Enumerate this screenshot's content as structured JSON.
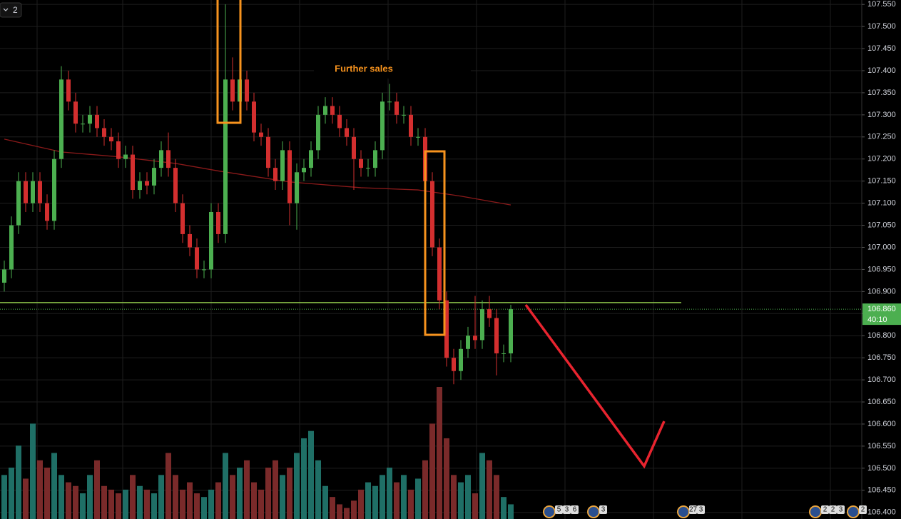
{
  "chart_data": {
    "type": "candlestick",
    "pane_label": "2",
    "annotation": "Further sales",
    "ylim": [
      106.385,
      107.56
    ],
    "yticks": [
      {
        "value": 107.55,
        "label": "107.550"
      },
      {
        "value": 107.5,
        "label": "107.500"
      },
      {
        "value": 107.45,
        "label": "107.450"
      },
      {
        "value": 107.4,
        "label": "107.400"
      },
      {
        "value": 107.35,
        "label": "107.350"
      },
      {
        "value": 107.3,
        "label": "107.300"
      },
      {
        "value": 107.25,
        "label": "107.250"
      },
      {
        "value": 107.2,
        "label": "107.200"
      },
      {
        "value": 107.15,
        "label": "107.150"
      },
      {
        "value": 107.1,
        "label": "107.100"
      },
      {
        "value": 107.05,
        "label": "107.050"
      },
      {
        "value": 107.0,
        "label": "107.000"
      },
      {
        "value": 106.95,
        "label": "106.950"
      },
      {
        "value": 106.9,
        "label": "106.900"
      },
      {
        "value": 106.85,
        "label": "106.850"
      },
      {
        "value": 106.8,
        "label": "106.800"
      },
      {
        "value": 106.75,
        "label": "106.750"
      },
      {
        "value": 106.7,
        "label": "106.700"
      },
      {
        "value": 106.65,
        "label": "106.650"
      },
      {
        "value": 106.6,
        "label": "106.600"
      },
      {
        "value": 106.55,
        "label": "106.550"
      },
      {
        "value": 106.5,
        "label": "106.500"
      },
      {
        "value": 106.45,
        "label": "106.450"
      },
      {
        "value": 106.4,
        "label": "106.400"
      }
    ],
    "grid": true,
    "up_color": "#4caf50",
    "down_color": "#d32f2f",
    "open": [
      106.92,
      106.95,
      107.05,
      107.15,
      107.1,
      107.15,
      107.1,
      107.06,
      107.2,
      107.38,
      107.33,
      107.28,
      107.28,
      107.3,
      107.27,
      107.25,
      107.24,
      107.2,
      107.21,
      107.13,
      107.15,
      107.14,
      107.18,
      107.22,
      107.18,
      107.1,
      107.03,
      107.0,
      106.95,
      106.95,
      107.08,
      107.03,
      107.38,
      107.33,
      107.38,
      107.33,
      107.26,
      107.25,
      107.18,
      107.15,
      107.22,
      107.1,
      107.17,
      107.18,
      107.22,
      107.3,
      107.32,
      107.3,
      107.27,
      107.25,
      107.2,
      107.18,
      107.18,
      107.22,
      107.33,
      107.33,
      107.3,
      107.3,
      107.25,
      107.25,
      107.15,
      107.0,
      106.88,
      106.75,
      106.72,
      106.77,
      106.8,
      106.79,
      106.86,
      106.84,
      106.76,
      106.76
    ],
    "high": [
      106.97,
      107.07,
      107.17,
      107.17,
      107.17,
      107.17,
      107.12,
      107.22,
      107.41,
      107.4,
      107.35,
      107.3,
      107.32,
      107.32,
      107.29,
      107.27,
      107.26,
      107.23,
      107.23,
      107.17,
      107.17,
      107.2,
      107.24,
      107.26,
      107.2,
      107.12,
      107.05,
      107.02,
      106.97,
      107.1,
      107.1,
      107.55,
      107.43,
      107.4,
      107.4,
      107.35,
      107.28,
      107.27,
      107.2,
      107.24,
      107.24,
      107.19,
      107.2,
      107.24,
      107.32,
      107.34,
      107.34,
      107.32,
      107.29,
      107.27,
      107.22,
      107.2,
      107.24,
      107.35,
      107.37,
      107.35,
      107.32,
      107.32,
      107.27,
      107.27,
      107.17,
      107.02,
      106.9,
      106.77,
      106.79,
      106.82,
      106.89,
      106.88,
      106.89,
      106.86,
      106.78,
      106.87
    ],
    "low": [
      106.9,
      106.93,
      107.03,
      107.08,
      107.08,
      107.08,
      107.04,
      107.04,
      107.18,
      107.31,
      107.26,
      107.26,
      107.26,
      107.25,
      107.23,
      107.22,
      107.18,
      107.18,
      107.11,
      107.11,
      107.12,
      107.12,
      107.16,
      107.16,
      107.08,
      107.01,
      106.98,
      106.93,
      106.93,
      106.93,
      107.01,
      107.01,
      107.31,
      107.31,
      107.31,
      107.24,
      107.23,
      107.16,
      107.13,
      107.13,
      107.05,
      107.04,
      107.15,
      107.16,
      107.2,
      107.28,
      107.28,
      107.25,
      107.23,
      107.13,
      107.16,
      107.16,
      107.16,
      107.2,
      107.31,
      107.28,
      107.28,
      107.23,
      107.23,
      107.13,
      106.98,
      106.86,
      106.73,
      106.69,
      106.7,
      106.75,
      106.77,
      106.77,
      106.82,
      106.71,
      106.74,
      106.74
    ],
    "close": [
      106.95,
      107.05,
      107.15,
      107.1,
      107.15,
      107.1,
      107.06,
      107.2,
      107.38,
      107.33,
      107.28,
      107.28,
      107.3,
      107.27,
      107.25,
      107.24,
      107.2,
      107.21,
      107.13,
      107.15,
      107.14,
      107.18,
      107.22,
      107.18,
      107.1,
      107.03,
      107.0,
      106.95,
      106.95,
      107.08,
      107.03,
      107.38,
      107.33,
      107.38,
      107.33,
      107.26,
      107.25,
      107.18,
      107.15,
      107.22,
      107.1,
      107.17,
      107.18,
      107.22,
      107.3,
      107.32,
      107.3,
      107.27,
      107.25,
      107.2,
      107.18,
      107.18,
      107.22,
      107.33,
      107.33,
      107.3,
      107.3,
      107.25,
      107.25,
      107.15,
      107.0,
      106.88,
      106.75,
      106.72,
      106.77,
      106.8,
      106.79,
      106.86,
      106.84,
      106.76,
      106.76,
      106.86
    ],
    "volume": [
      60,
      70,
      100,
      55,
      130,
      80,
      70,
      90,
      60,
      50,
      45,
      35,
      60,
      80,
      45,
      40,
      35,
      40,
      60,
      45,
      40,
      35,
      60,
      90,
      60,
      40,
      50,
      35,
      30,
      40,
      50,
      90,
      60,
      70,
      80,
      50,
      40,
      70,
      80,
      60,
      70,
      90,
      110,
      120,
      80,
      45,
      30,
      20,
      15,
      25,
      40,
      50,
      45,
      60,
      70,
      50,
      60,
      40,
      55,
      80,
      130,
      180,
      110,
      60,
      50,
      60,
      35,
      90,
      80,
      60,
      30,
      20
    ],
    "up_volume_color": "#1f6f66",
    "down_volume_color": "#7a2a2a",
    "moving_average": {
      "color": "#8b1a1a",
      "x": [
        0,
        8,
        16,
        24,
        30,
        40,
        50,
        58,
        64,
        71
      ],
      "values": [
        107.245,
        107.216,
        107.205,
        107.19,
        107.173,
        107.148,
        107.135,
        107.13,
        107.116,
        107.096
      ]
    },
    "level_line": {
      "value": 106.875,
      "color": "#8bc34a"
    },
    "price_line": {
      "value": 106.86,
      "label": "106.860",
      "color": "#4caf50"
    },
    "countdown": "40:10",
    "events": [
      "5",
      "3",
      "6",
      "3",
      "27",
      "3",
      "2",
      "2",
      "3",
      "2"
    ]
  }
}
